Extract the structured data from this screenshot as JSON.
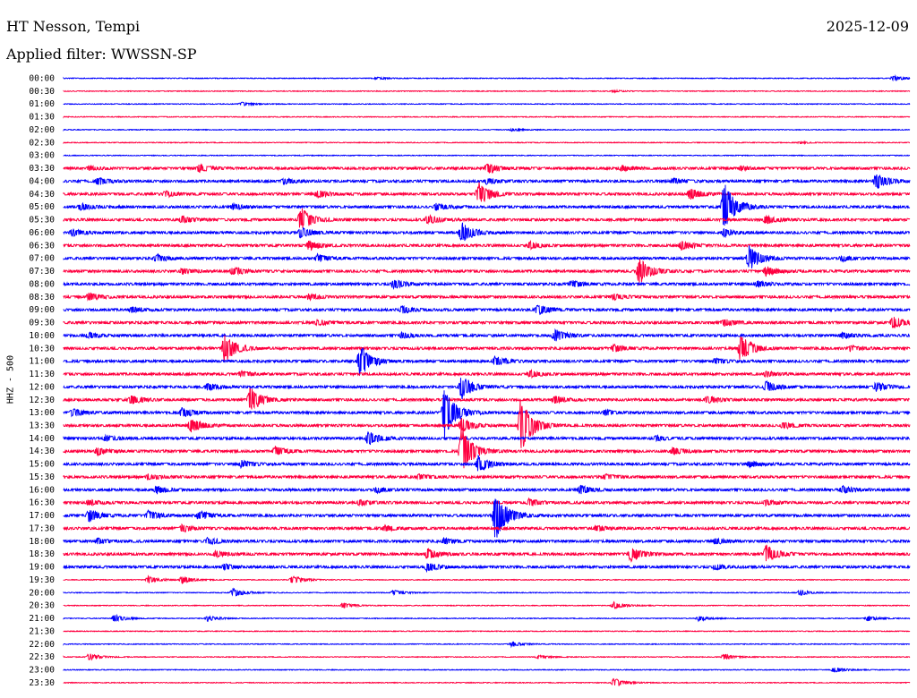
{
  "header": {
    "station": "HT Nesson, Tempi",
    "date": "2025-12-09",
    "filter": "Applied filter: WWSSN-SP"
  },
  "chart_data": {
    "type": "line",
    "ylabel": "HHZ - 500",
    "colors": [
      "#0000ff",
      "#ff0040"
    ],
    "lines": [
      {
        "label": "00:00",
        "events": [
          {
            "t": 0.37,
            "amp": 1.2
          },
          {
            "t": 0.98,
            "amp": 3
          }
        ]
      },
      {
        "label": "00:30",
        "events": [
          {
            "t": 0.65,
            "amp": 1
          }
        ]
      },
      {
        "label": "01:00",
        "events": [
          {
            "t": 0.21,
            "amp": 2
          }
        ]
      },
      {
        "label": "01:30",
        "events": []
      },
      {
        "label": "02:00",
        "events": [
          {
            "t": 0.53,
            "amp": 1.5
          }
        ]
      },
      {
        "label": "02:30",
        "events": [
          {
            "t": 0.87,
            "amp": 1
          }
        ]
      },
      {
        "label": "03:00",
        "events": []
      },
      {
        "label": "03:30",
        "events": [
          {
            "t": 0.03,
            "amp": 2
          },
          {
            "t": 0.16,
            "amp": 4
          },
          {
            "t": 0.5,
            "amp": 6
          },
          {
            "t": 0.66,
            "amp": 3
          },
          {
            "t": 0.8,
            "amp": 2
          }
        ]
      },
      {
        "label": "04:00",
        "events": [
          {
            "t": 0.04,
            "amp": 4
          },
          {
            "t": 0.26,
            "amp": 3
          },
          {
            "t": 0.5,
            "amp": 3
          },
          {
            "t": 0.72,
            "amp": 3
          },
          {
            "t": 0.96,
            "amp": 9
          }
        ]
      },
      {
        "label": "04:30",
        "events": [
          {
            "t": 0.12,
            "amp": 3
          },
          {
            "t": 0.3,
            "amp": 4
          },
          {
            "t": 0.49,
            "amp": 14
          },
          {
            "t": 0.74,
            "amp": 6
          }
        ]
      },
      {
        "label": "05:00",
        "events": [
          {
            "t": 0.02,
            "amp": 4
          },
          {
            "t": 0.2,
            "amp": 3
          },
          {
            "t": 0.44,
            "amp": 4
          },
          {
            "t": 0.78,
            "amp": 28
          }
        ]
      },
      {
        "label": "05:30",
        "events": [
          {
            "t": 0.14,
            "amp": 4
          },
          {
            "t": 0.28,
            "amp": 14
          },
          {
            "t": 0.43,
            "amp": 5
          },
          {
            "t": 0.83,
            "amp": 5
          }
        ]
      },
      {
        "label": "06:00",
        "events": [
          {
            "t": 0.01,
            "amp": 4
          },
          {
            "t": 0.28,
            "amp": 6
          },
          {
            "t": 0.47,
            "amp": 12
          },
          {
            "t": 0.78,
            "amp": 4
          }
        ]
      },
      {
        "label": "06:30",
        "events": [
          {
            "t": 0.29,
            "amp": 5
          },
          {
            "t": 0.55,
            "amp": 4
          },
          {
            "t": 0.73,
            "amp": 5
          }
        ]
      },
      {
        "label": "07:00",
        "events": [
          {
            "t": 0.11,
            "amp": 4
          },
          {
            "t": 0.3,
            "amp": 4
          },
          {
            "t": 0.81,
            "amp": 14
          },
          {
            "t": 0.92,
            "amp": 3
          }
        ]
      },
      {
        "label": "07:30",
        "events": [
          {
            "t": 0.14,
            "amp": 3
          },
          {
            "t": 0.2,
            "amp": 5
          },
          {
            "t": 0.68,
            "amp": 16
          },
          {
            "t": 0.83,
            "amp": 5
          }
        ]
      },
      {
        "label": "08:00",
        "events": [
          {
            "t": 0.39,
            "amp": 5
          },
          {
            "t": 0.6,
            "amp": 4
          },
          {
            "t": 0.82,
            "amp": 3
          }
        ]
      },
      {
        "label": "08:30",
        "events": [
          {
            "t": 0.03,
            "amp": 4
          },
          {
            "t": 0.29,
            "amp": 3
          },
          {
            "t": 0.65,
            "amp": 3
          }
        ]
      },
      {
        "label": "09:00",
        "events": [
          {
            "t": 0.08,
            "amp": 3
          },
          {
            "t": 0.4,
            "amp": 4
          },
          {
            "t": 0.56,
            "amp": 6
          }
        ]
      },
      {
        "label": "09:30",
        "events": [
          {
            "t": 0.3,
            "amp": 3
          },
          {
            "t": 0.78,
            "amp": 4
          },
          {
            "t": 0.98,
            "amp": 7
          }
        ]
      },
      {
        "label": "10:00",
        "events": [
          {
            "t": 0.03,
            "amp": 3
          },
          {
            "t": 0.4,
            "amp": 3
          },
          {
            "t": 0.58,
            "amp": 7
          },
          {
            "t": 0.92,
            "amp": 3
          }
        ]
      },
      {
        "label": "10:30",
        "events": [
          {
            "t": 0.19,
            "amp": 16
          },
          {
            "t": 0.65,
            "amp": 4
          },
          {
            "t": 0.8,
            "amp": 16
          },
          {
            "t": 0.93,
            "amp": 3
          }
        ]
      },
      {
        "label": "11:00",
        "events": [
          {
            "t": 0.35,
            "amp": 18
          },
          {
            "t": 0.51,
            "amp": 5
          },
          {
            "t": 0.77,
            "amp": 3
          }
        ]
      },
      {
        "label": "11:30",
        "events": [
          {
            "t": 0.21,
            "amp": 3
          },
          {
            "t": 0.55,
            "amp": 4
          },
          {
            "t": 0.83,
            "amp": 3
          }
        ]
      },
      {
        "label": "12:00",
        "events": [
          {
            "t": 0.17,
            "amp": 4
          },
          {
            "t": 0.47,
            "amp": 14
          },
          {
            "t": 0.83,
            "amp": 6
          },
          {
            "t": 0.96,
            "amp": 5
          }
        ]
      },
      {
        "label": "12:30",
        "events": [
          {
            "t": 0.08,
            "amp": 5
          },
          {
            "t": 0.22,
            "amp": 15
          },
          {
            "t": 0.58,
            "amp": 4
          },
          {
            "t": 0.76,
            "amp": 4
          }
        ]
      },
      {
        "label": "13:00",
        "events": [
          {
            "t": 0.01,
            "amp": 4
          },
          {
            "t": 0.14,
            "amp": 5
          },
          {
            "t": 0.45,
            "amp": 30
          },
          {
            "t": 0.64,
            "amp": 3
          }
        ]
      },
      {
        "label": "13:30",
        "events": [
          {
            "t": 0.15,
            "amp": 8
          },
          {
            "t": 0.47,
            "amp": 8
          },
          {
            "t": 0.54,
            "amp": 32
          },
          {
            "t": 0.85,
            "amp": 4
          }
        ]
      },
      {
        "label": "14:00",
        "events": [
          {
            "t": 0.05,
            "amp": 3
          },
          {
            "t": 0.36,
            "amp": 8
          },
          {
            "t": 0.7,
            "amp": 3
          }
        ]
      },
      {
        "label": "14:30",
        "events": [
          {
            "t": 0.04,
            "amp": 4
          },
          {
            "t": 0.25,
            "amp": 5
          },
          {
            "t": 0.47,
            "amp": 28
          },
          {
            "t": 0.72,
            "amp": 4
          }
        ]
      },
      {
        "label": "15:00",
        "events": [
          {
            "t": 0.21,
            "amp": 4
          },
          {
            "t": 0.49,
            "amp": 10
          },
          {
            "t": 0.81,
            "amp": 3
          }
        ]
      },
      {
        "label": "15:30",
        "events": [
          {
            "t": 0.1,
            "amp": 3
          },
          {
            "t": 0.42,
            "amp": 3
          },
          {
            "t": 0.64,
            "amp": 3
          }
        ]
      },
      {
        "label": "16:00",
        "events": [
          {
            "t": 0.11,
            "amp": 4
          },
          {
            "t": 0.37,
            "amp": 3
          },
          {
            "t": 0.61,
            "amp": 5
          },
          {
            "t": 0.92,
            "amp": 4
          }
        ]
      },
      {
        "label": "16:30",
        "events": [
          {
            "t": 0.03,
            "amp": 3
          },
          {
            "t": 0.35,
            "amp": 3
          },
          {
            "t": 0.55,
            "amp": 4
          },
          {
            "t": 0.83,
            "amp": 3
          }
        ]
      },
      {
        "label": "17:00",
        "events": [
          {
            "t": 0.03,
            "amp": 7
          },
          {
            "t": 0.1,
            "amp": 5
          },
          {
            "t": 0.16,
            "amp": 5
          },
          {
            "t": 0.51,
            "amp": 28
          }
        ]
      },
      {
        "label": "17:30",
        "events": [
          {
            "t": 0.14,
            "amp": 4
          },
          {
            "t": 0.38,
            "amp": 3
          },
          {
            "t": 0.63,
            "amp": 3
          }
        ]
      },
      {
        "label": "18:00",
        "events": [
          {
            "t": 0.04,
            "amp": 3
          },
          {
            "t": 0.17,
            "amp": 4
          },
          {
            "t": 0.45,
            "amp": 3
          },
          {
            "t": 0.77,
            "amp": 3
          }
        ]
      },
      {
        "label": "18:30",
        "events": [
          {
            "t": 0.18,
            "amp": 3
          },
          {
            "t": 0.43,
            "amp": 6
          },
          {
            "t": 0.67,
            "amp": 9
          },
          {
            "t": 0.83,
            "amp": 10
          }
        ]
      },
      {
        "label": "19:00",
        "events": [
          {
            "t": 0.19,
            "amp": 3
          },
          {
            "t": 0.43,
            "amp": 5
          },
          {
            "t": 0.77,
            "amp": 3
          }
        ]
      },
      {
        "label": "19:30",
        "events": [
          {
            "t": 0.1,
            "amp": 4
          },
          {
            "t": 0.14,
            "amp": 4
          },
          {
            "t": 0.27,
            "amp": 5
          }
        ]
      },
      {
        "label": "20:00",
        "events": [
          {
            "t": 0.2,
            "amp": 5
          },
          {
            "t": 0.39,
            "amp": 3
          },
          {
            "t": 0.87,
            "amp": 3
          }
        ]
      },
      {
        "label": "20:30",
        "events": [
          {
            "t": 0.33,
            "amp": 3
          },
          {
            "t": 0.65,
            "amp": 4
          }
        ]
      },
      {
        "label": "21:00",
        "events": [
          {
            "t": 0.06,
            "amp": 4
          },
          {
            "t": 0.17,
            "amp": 3
          },
          {
            "t": 0.75,
            "amp": 3
          },
          {
            "t": 0.95,
            "amp": 3
          }
        ]
      },
      {
        "label": "21:30",
        "events": []
      },
      {
        "label": "22:00",
        "events": [
          {
            "t": 0.53,
            "amp": 3
          }
        ]
      },
      {
        "label": "22:30",
        "events": [
          {
            "t": 0.03,
            "amp": 4
          },
          {
            "t": 0.56,
            "amp": 2
          },
          {
            "t": 0.78,
            "amp": 3
          }
        ]
      },
      {
        "label": "23:00",
        "events": [
          {
            "t": 0.91,
            "amp": 3
          }
        ]
      },
      {
        "label": "23:30",
        "events": [
          {
            "t": 0.65,
            "amp": 5
          }
        ]
      }
    ]
  }
}
